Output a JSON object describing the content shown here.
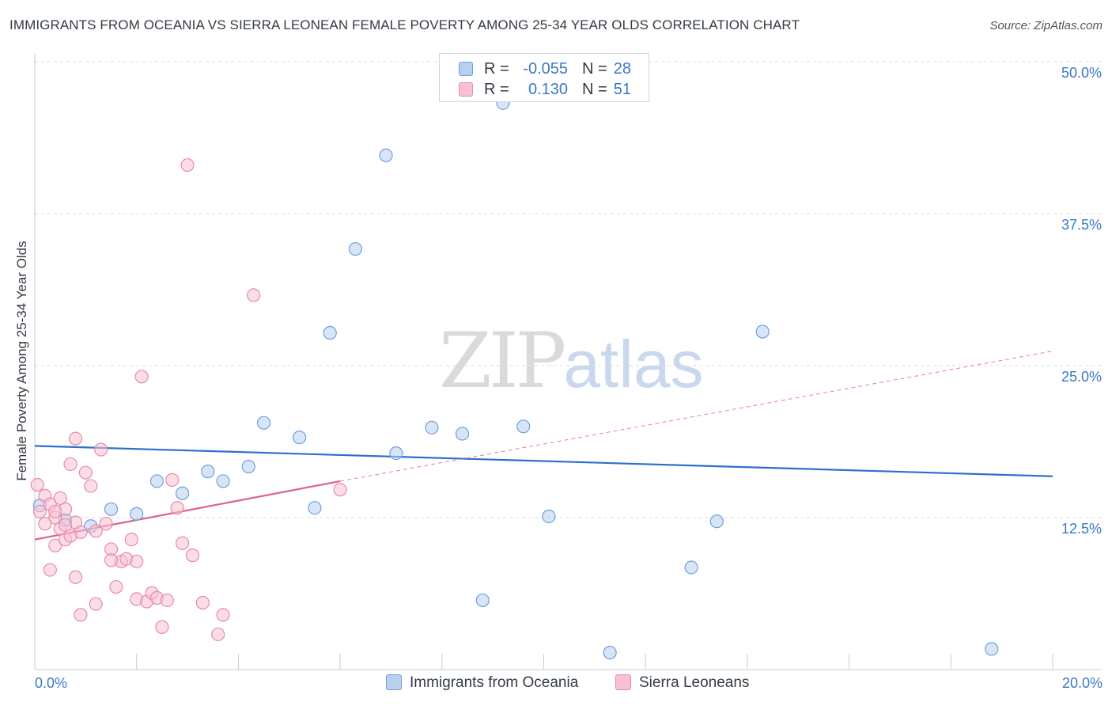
{
  "header": {
    "title": "IMMIGRANTS FROM OCEANIA VS SIERRA LEONEAN FEMALE POVERTY AMONG 25-34 YEAR OLDS CORRELATION CHART",
    "source": "Source: ZipAtlas.com"
  },
  "watermark": {
    "zip": "ZIP",
    "atlas": "atlas"
  },
  "legend": {
    "rows": [
      {
        "r_label": "R =",
        "r_value": "-0.055",
        "n_label": "N =",
        "n_value": "28"
      },
      {
        "r_label": "R =",
        "r_value": "0.130",
        "n_label": "N =",
        "n_value": "51"
      }
    ],
    "bottom": [
      "Immigrants from Oceania",
      "Sierra Leoneans"
    ]
  },
  "colors": {
    "blue_fill": "#b8d0f0",
    "blue_stroke": "#6f9fdc",
    "blue_line": "#2d6fcc",
    "pink_fill": "#f7c1d2",
    "pink_stroke": "#e98aa8",
    "pink_line": "#e0608c",
    "axis_label": "#3b78c4",
    "grid": "#d8dce2"
  },
  "chart_data": {
    "type": "scatter",
    "title": "IMMIGRANTS FROM OCEANIA VS SIERRA LEONEAN FEMALE POVERTY AMONG 25-34 YEAR OLDS CORRELATION CHART",
    "xlabel": "",
    "ylabel": "Female Poverty Among 25-34 Year Olds",
    "xlim": [
      0,
      20
    ],
    "ylim": [
      0,
      50
    ],
    "x_tick_labels": [
      "0.0%",
      "20.0%"
    ],
    "y_ticks": [
      12.5,
      25.0,
      37.5,
      50.0
    ],
    "y_tick_labels": [
      "12.5%",
      "25.0%",
      "37.5%",
      "50.0%"
    ],
    "grid": true,
    "series": [
      {
        "name": "Immigrants from Oceania",
        "color": "blue",
        "r": -0.055,
        "n": 28,
        "trend": {
          "x": [
            0,
            20
          ],
          "y": [
            18.4,
            15.9
          ],
          "style": "solid"
        },
        "points": [
          [
            0.1,
            13.5
          ],
          [
            0.6,
            12.3
          ],
          [
            1.1,
            11.8
          ],
          [
            1.5,
            13.2
          ],
          [
            2.0,
            12.8
          ],
          [
            2.4,
            15.5
          ],
          [
            2.9,
            14.5
          ],
          [
            3.4,
            16.3
          ],
          [
            3.7,
            15.5
          ],
          [
            4.2,
            16.7
          ],
          [
            4.5,
            20.3
          ],
          [
            5.2,
            19.1
          ],
          [
            5.5,
            13.3
          ],
          [
            5.8,
            27.7
          ],
          [
            6.3,
            34.6
          ],
          [
            6.9,
            42.3
          ],
          [
            7.1,
            17.8
          ],
          [
            7.8,
            19.9
          ],
          [
            8.4,
            19.4
          ],
          [
            8.8,
            5.7
          ],
          [
            9.2,
            46.6
          ],
          [
            9.6,
            20.0
          ],
          [
            10.1,
            12.6
          ],
          [
            11.3,
            1.4
          ],
          [
            12.9,
            8.4
          ],
          [
            13.4,
            12.2
          ],
          [
            14.3,
            27.8
          ],
          [
            18.8,
            1.7
          ]
        ]
      },
      {
        "name": "Sierra Leoneans",
        "color": "pink",
        "r": 0.13,
        "n": 51,
        "trend": {
          "x": [
            0,
            6.0
          ],
          "y": [
            10.7,
            15.5
          ],
          "extended": {
            "x": [
              6.0,
              20
            ],
            "y": [
              15.5,
              26.2
            ]
          },
          "style": "solid then dashed"
        },
        "points": [
          [
            0.05,
            15.2
          ],
          [
            0.1,
            13.0
          ],
          [
            0.2,
            14.3
          ],
          [
            0.3,
            13.6
          ],
          [
            0.4,
            12.5
          ],
          [
            0.5,
            11.6
          ],
          [
            0.6,
            13.2
          ],
          [
            0.7,
            16.9
          ],
          [
            0.8,
            12.1
          ],
          [
            0.9,
            11.3
          ],
          [
            0.2,
            12.0
          ],
          [
            0.3,
            8.2
          ],
          [
            0.4,
            10.2
          ],
          [
            0.5,
            14.1
          ],
          [
            0.6,
            10.7
          ],
          [
            0.7,
            11.0
          ],
          [
            0.8,
            19.0
          ],
          [
            0.8,
            7.6
          ],
          [
            1.0,
            16.2
          ],
          [
            1.1,
            15.1
          ],
          [
            1.2,
            11.4
          ],
          [
            1.3,
            18.1
          ],
          [
            1.4,
            12.0
          ],
          [
            1.5,
            9.9
          ],
          [
            1.6,
            6.8
          ],
          [
            1.7,
            8.9
          ],
          [
            1.8,
            9.1
          ],
          [
            1.9,
            10.7
          ],
          [
            2.0,
            8.9
          ],
          [
            2.0,
            5.8
          ],
          [
            2.1,
            24.1
          ],
          [
            2.2,
            5.6
          ],
          [
            2.3,
            6.3
          ],
          [
            2.4,
            5.9
          ],
          [
            2.5,
            3.5
          ],
          [
            2.6,
            5.7
          ],
          [
            2.7,
            15.6
          ],
          [
            2.8,
            13.3
          ],
          [
            2.9,
            10.4
          ],
          [
            3.3,
            5.5
          ],
          [
            3.7,
            4.5
          ],
          [
            3.0,
            41.5
          ],
          [
            3.1,
            9.4
          ],
          [
            3.6,
            2.9
          ],
          [
            4.3,
            30.8
          ],
          [
            6.0,
            14.8
          ],
          [
            0.9,
            4.5
          ],
          [
            1.2,
            5.4
          ],
          [
            0.4,
            13.0
          ],
          [
            0.6,
            11.9
          ],
          [
            1.5,
            9.0
          ]
        ]
      }
    ]
  }
}
